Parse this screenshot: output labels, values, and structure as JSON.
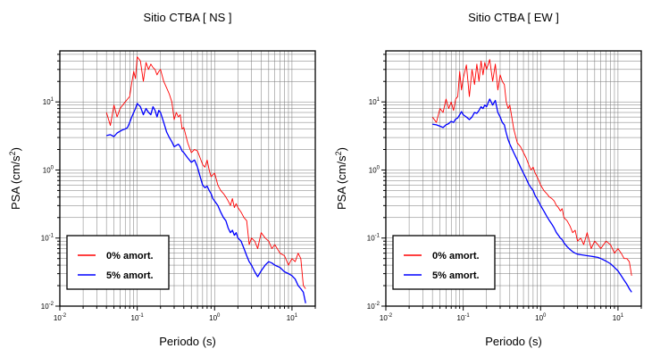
{
  "chart_data": [
    {
      "type": "line",
      "title": "Sitio CTBA [ NS ]",
      "xlabel": "Periodo (s)",
      "ylabel": "PSA (cm/s2)",
      "xscale": "log",
      "yscale": "log",
      "xlim": [
        0.01,
        20
      ],
      "ylim": [
        0.01,
        50
      ],
      "x_ticks": [
        {
          "label_base": "10",
          "label_exp": "-2"
        },
        {
          "label_base": "10",
          "label_exp": "-1"
        },
        {
          "label_base": "10",
          "label_exp": "0"
        },
        {
          "label_base": "10",
          "label_exp": "1"
        }
      ],
      "y_ticks": [
        {
          "label_base": "10",
          "label_exp": "-2"
        },
        {
          "label_base": "10",
          "label_exp": "-1"
        },
        {
          "label_base": "10",
          "label_exp": "0"
        },
        {
          "label_base": "10",
          "label_exp": "1"
        }
      ],
      "grid": true,
      "legend_position": "bottom-left",
      "series": [
        {
          "name": "0% amort.",
          "color": "#ff0000",
          "x": [
            0.04,
            0.045,
            0.05,
            0.055,
            0.06,
            0.065,
            0.07,
            0.075,
            0.08,
            0.085,
            0.09,
            0.095,
            0.1,
            0.11,
            0.12,
            0.13,
            0.14,
            0.15,
            0.16,
            0.17,
            0.18,
            0.19,
            0.2,
            0.22,
            0.24,
            0.26,
            0.28,
            0.3,
            0.32,
            0.34,
            0.36,
            0.38,
            0.4,
            0.45,
            0.5,
            0.55,
            0.6,
            0.65,
            0.7,
            0.75,
            0.8,
            0.85,
            0.9,
            0.95,
            1.0,
            1.1,
            1.2,
            1.3,
            1.4,
            1.5,
            1.6,
            1.7,
            1.8,
            1.9,
            2.0,
            2.2,
            2.4,
            2.6,
            2.8,
            3.0,
            3.3,
            3.6,
            4.0,
            4.5,
            5.0,
            5.5,
            6.0,
            7.0,
            8.0,
            9.0,
            10.0,
            11.0,
            12.0,
            13.0,
            14.0,
            15.0
          ],
          "values": [
            7.0,
            4.5,
            9.0,
            6.0,
            8.0,
            9.0,
            10.0,
            11.0,
            12.0,
            19.0,
            28.0,
            22.0,
            46.0,
            40.0,
            20.0,
            38.0,
            30.0,
            36.0,
            32.0,
            30.0,
            25.0,
            28.0,
            30.0,
            20.0,
            16.0,
            13.0,
            10.0,
            5.5,
            7.0,
            6.0,
            6.5,
            4.0,
            4.2,
            2.5,
            1.8,
            2.0,
            1.9,
            1.5,
            1.2,
            1.1,
            1.4,
            1.0,
            0.8,
            0.85,
            0.9,
            0.6,
            0.5,
            0.45,
            0.4,
            0.35,
            0.3,
            0.38,
            0.28,
            0.32,
            0.28,
            0.24,
            0.2,
            0.18,
            0.08,
            0.1,
            0.09,
            0.07,
            0.12,
            0.1,
            0.09,
            0.07,
            0.08,
            0.06,
            0.055,
            0.04,
            0.05,
            0.045,
            0.06,
            0.05,
            0.02,
            0.018
          ]
        },
        {
          "name": "5% amort.",
          "color": "#0000ff",
          "x": [
            0.04,
            0.045,
            0.05,
            0.055,
            0.06,
            0.065,
            0.07,
            0.075,
            0.08,
            0.085,
            0.09,
            0.095,
            0.1,
            0.11,
            0.12,
            0.13,
            0.14,
            0.15,
            0.16,
            0.17,
            0.18,
            0.19,
            0.2,
            0.22,
            0.24,
            0.26,
            0.28,
            0.3,
            0.32,
            0.34,
            0.36,
            0.38,
            0.4,
            0.45,
            0.5,
            0.55,
            0.6,
            0.65,
            0.7,
            0.75,
            0.8,
            0.85,
            0.9,
            0.95,
            1.0,
            1.1,
            1.2,
            1.3,
            1.4,
            1.5,
            1.6,
            1.7,
            1.8,
            1.9,
            2.0,
            2.2,
            2.4,
            2.6,
            2.8,
            3.0,
            3.3,
            3.6,
            4.0,
            4.5,
            5.0,
            5.5,
            6.0,
            7.0,
            8.0,
            9.0,
            10.0,
            11.0,
            12.0,
            13.0,
            14.0,
            15.0
          ],
          "values": [
            3.2,
            3.3,
            3.1,
            3.5,
            3.7,
            3.9,
            4.0,
            4.2,
            5.0,
            6.0,
            7.0,
            8.0,
            9.5,
            8.5,
            6.5,
            8.0,
            7.0,
            6.5,
            8.5,
            7.5,
            6.0,
            7.5,
            7.0,
            5.0,
            3.6,
            3.0,
            2.6,
            2.2,
            2.3,
            2.4,
            2.2,
            1.9,
            1.8,
            1.5,
            1.3,
            1.4,
            1.1,
            0.8,
            0.6,
            0.55,
            0.58,
            0.5,
            0.45,
            0.38,
            0.35,
            0.3,
            0.24,
            0.2,
            0.18,
            0.14,
            0.12,
            0.13,
            0.11,
            0.12,
            0.1,
            0.09,
            0.07,
            0.055,
            0.045,
            0.04,
            0.032,
            0.027,
            0.033,
            0.04,
            0.045,
            0.043,
            0.04,
            0.037,
            0.032,
            0.03,
            0.028,
            0.025,
            0.02,
            0.018,
            0.016,
            0.011
          ]
        }
      ]
    },
    {
      "type": "line",
      "title": "Sitio CTBA [ EW ]",
      "xlabel": "Periodo (s)",
      "ylabel": "PSA (cm/s2)",
      "xscale": "log",
      "yscale": "log",
      "xlim": [
        0.01,
        20
      ],
      "ylim": [
        0.01,
        50
      ],
      "x_ticks": [
        {
          "label_base": "10",
          "label_exp": "-2"
        },
        {
          "label_base": "10",
          "label_exp": "-1"
        },
        {
          "label_base": "10",
          "label_exp": "0"
        },
        {
          "label_base": "10",
          "label_exp": "1"
        }
      ],
      "y_ticks": [
        {
          "label_base": "10",
          "label_exp": "-2"
        },
        {
          "label_base": "10",
          "label_exp": "-1"
        },
        {
          "label_base": "10",
          "label_exp": "0"
        },
        {
          "label_base": "10",
          "label_exp": "1"
        }
      ],
      "grid": true,
      "legend_position": "bottom-left",
      "series": [
        {
          "name": "0% amort.",
          "color": "#ff0000",
          "x": [
            0.04,
            0.045,
            0.05,
            0.055,
            0.06,
            0.065,
            0.07,
            0.075,
            0.08,
            0.085,
            0.09,
            0.095,
            0.1,
            0.11,
            0.12,
            0.13,
            0.14,
            0.15,
            0.16,
            0.17,
            0.18,
            0.19,
            0.2,
            0.22,
            0.24,
            0.26,
            0.28,
            0.3,
            0.32,
            0.34,
            0.36,
            0.38,
            0.4,
            0.45,
            0.5,
            0.55,
            0.6,
            0.65,
            0.7,
            0.75,
            0.8,
            0.85,
            0.9,
            0.95,
            1.0,
            1.1,
            1.2,
            1.3,
            1.4,
            1.5,
            1.6,
            1.7,
            1.8,
            1.9,
            2.0,
            2.2,
            2.4,
            2.6,
            2.8,
            3.0,
            3.3,
            3.6,
            4.0,
            4.5,
            5.0,
            5.5,
            6.0,
            7.0,
            8.0,
            9.0,
            10.0,
            11.0,
            12.0,
            13.0,
            14.0,
            15.0
          ],
          "values": [
            6.0,
            5.0,
            8.0,
            7.0,
            11.0,
            8.0,
            10.0,
            7.5,
            11.0,
            12.0,
            28.0,
            15.0,
            22.0,
            35.0,
            12.0,
            30.0,
            18.0,
            36.0,
            20.0,
            40.0,
            25.0,
            38.0,
            30.0,
            42.0,
            20.0,
            36.0,
            15.0,
            25.0,
            20.0,
            18.0,
            10.0,
            8.0,
            9.0,
            4.0,
            2.5,
            2.2,
            1.8,
            1.5,
            1.2,
            1.0,
            1.1,
            0.9,
            0.8,
            0.7,
            0.6,
            0.5,
            0.45,
            0.4,
            0.38,
            0.35,
            0.3,
            0.28,
            0.25,
            0.27,
            0.2,
            0.18,
            0.15,
            0.12,
            0.13,
            0.09,
            0.1,
            0.08,
            0.12,
            0.07,
            0.09,
            0.08,
            0.07,
            0.09,
            0.08,
            0.06,
            0.07,
            0.06,
            0.05,
            0.05,
            0.045,
            0.028
          ]
        },
        {
          "name": "5% amort.",
          "color": "#0000ff",
          "x": [
            0.04,
            0.045,
            0.05,
            0.055,
            0.06,
            0.065,
            0.07,
            0.075,
            0.08,
            0.085,
            0.09,
            0.095,
            0.1,
            0.11,
            0.12,
            0.13,
            0.14,
            0.15,
            0.16,
            0.17,
            0.18,
            0.19,
            0.2,
            0.22,
            0.24,
            0.26,
            0.28,
            0.3,
            0.32,
            0.34,
            0.36,
            0.38,
            0.4,
            0.45,
            0.5,
            0.55,
            0.6,
            0.65,
            0.7,
            0.75,
            0.8,
            0.85,
            0.9,
            0.95,
            1.0,
            1.1,
            1.2,
            1.3,
            1.4,
            1.5,
            1.6,
            1.7,
            1.8,
            1.9,
            2.0,
            2.2,
            2.4,
            2.6,
            2.8,
            3.0,
            3.3,
            3.6,
            4.0,
            4.5,
            5.0,
            5.5,
            6.0,
            7.0,
            8.0,
            9.0,
            10.0,
            11.0,
            12.0,
            13.0,
            14.0,
            15.0
          ],
          "values": [
            4.7,
            4.6,
            4.4,
            4.2,
            4.6,
            4.8,
            5.2,
            5.0,
            5.6,
            5.8,
            6.5,
            7.2,
            6.5,
            6.0,
            5.5,
            6.0,
            7.0,
            6.8,
            7.5,
            8.5,
            8.0,
            9.0,
            8.5,
            11.0,
            9.0,
            10.5,
            7.0,
            6.0,
            5.0,
            4.6,
            3.5,
            2.8,
            2.4,
            1.8,
            1.4,
            1.1,
            0.9,
            0.75,
            0.62,
            0.55,
            0.5,
            0.42,
            0.38,
            0.34,
            0.3,
            0.25,
            0.21,
            0.18,
            0.16,
            0.14,
            0.12,
            0.11,
            0.1,
            0.095,
            0.085,
            0.075,
            0.068,
            0.063,
            0.06,
            0.058,
            0.057,
            0.056,
            0.055,
            0.054,
            0.053,
            0.052,
            0.05,
            0.046,
            0.042,
            0.037,
            0.033,
            0.028,
            0.024,
            0.021,
            0.018,
            0.016
          ]
        }
      ]
    }
  ]
}
